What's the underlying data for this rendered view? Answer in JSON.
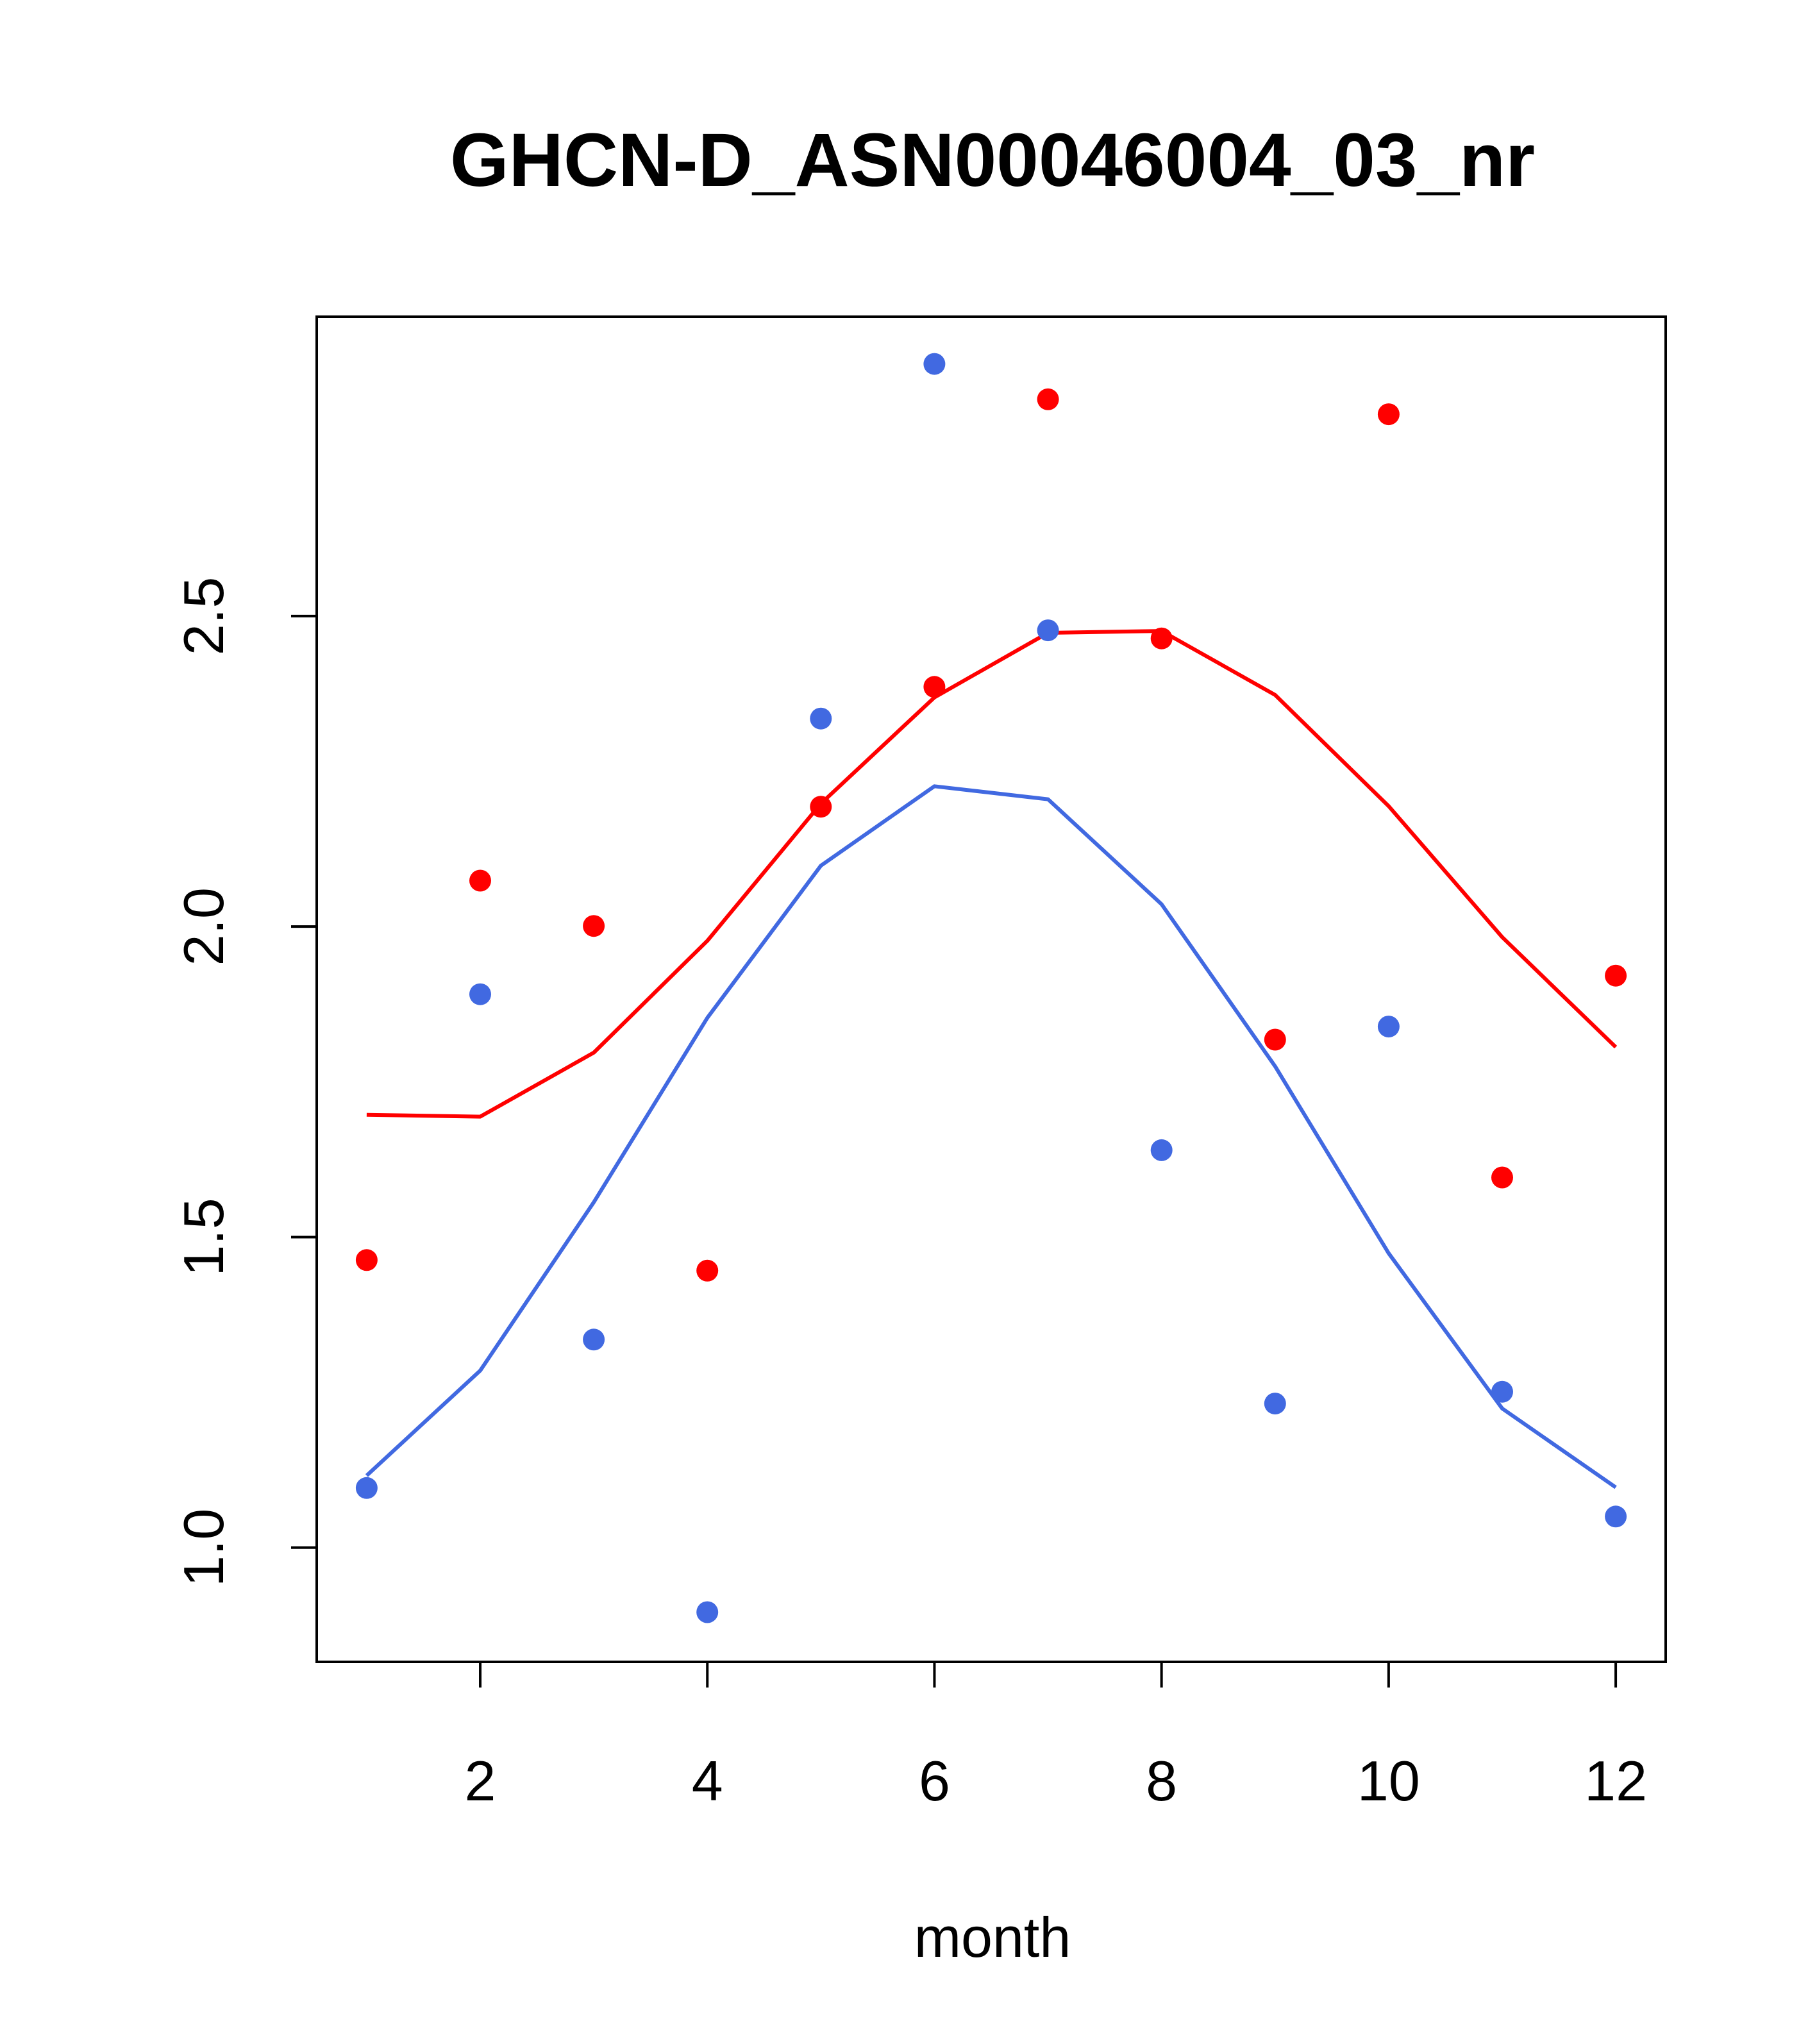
{
  "chart_data": {
    "type": "scatter",
    "title": "GHCN-D_ASN00046004_03_nr",
    "xlabel": "month",
    "ylabel": "",
    "xlim": [
      0.56,
      12.44
    ],
    "ylim": [
      0.816,
      2.982
    ],
    "x_ticks": [
      2,
      4,
      6,
      8,
      10,
      12
    ],
    "y_ticks": [
      1.0,
      1.5,
      2.0,
      2.5
    ],
    "x_tick_labels": [
      "2",
      "4",
      "6",
      "8",
      "10",
      "12"
    ],
    "y_tick_labels": [
      "1.0",
      "1.5",
      "2.0",
      "2.5"
    ],
    "grid": false,
    "legend": "none",
    "series": [
      {
        "color": "#ff0000",
        "points_x": [
          1,
          2,
          3,
          4,
          5,
          6,
          7,
          8,
          9,
          10,
          11,
          12
        ],
        "points_y": [
          1.463,
          2.074,
          2.001,
          1.446,
          2.193,
          2.386,
          2.849,
          2.464,
          1.818,
          2.825,
          1.596,
          1.921
        ],
        "line_x": [
          1,
          2,
          3,
          4,
          5,
          6,
          7,
          8,
          9,
          10,
          11,
          12
        ],
        "line_y": [
          1.697,
          1.694,
          1.797,
          1.977,
          2.198,
          2.369,
          2.473,
          2.476,
          2.373,
          2.194,
          1.983,
          1.806
        ]
      },
      {
        "color": "#4169e1",
        "points_x": [
          1,
          2,
          3,
          4,
          5,
          6,
          7,
          8,
          9,
          10,
          11,
          12
        ],
        "points_y": [
          1.096,
          1.891,
          1.335,
          0.896,
          2.335,
          2.906,
          2.477,
          1.64,
          1.232,
          1.839,
          1.251,
          1.05
        ],
        "line_x": [
          1,
          2,
          3,
          4,
          5,
          6,
          7,
          8,
          9,
          10,
          11,
          12
        ],
        "line_y": [
          1.116,
          1.285,
          1.556,
          1.853,
          2.098,
          2.226,
          2.205,
          2.036,
          1.775,
          1.474,
          1.224,
          1.097
        ]
      }
    ]
  }
}
